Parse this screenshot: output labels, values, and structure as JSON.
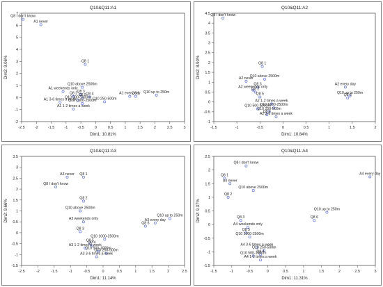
{
  "chart_data": [
    {
      "type": "scatter",
      "title": "Q10&Q11:A1",
      "xlabel": "Dim1: 10.81%",
      "ylabel": "Dim2: 9.06%",
      "xlim": [
        -2.5,
        3
      ],
      "ylim": [
        -2,
        7
      ],
      "xticks": [
        "-2.5",
        "-2",
        "-1.5",
        "-1",
        "-0.5",
        "0",
        "0.5",
        "1",
        "1.5",
        "2",
        "2.5",
        "3"
      ],
      "yticks": [
        "-2",
        "-1",
        "0",
        "1",
        "2",
        "3",
        "4",
        "5",
        "6",
        "7"
      ],
      "grid": false,
      "points": [
        {
          "label": "Q8 I don't know",
          "x": -2.45,
          "y": 6.5
        },
        {
          "label": "A1 never",
          "x": -1.85,
          "y": 6.05
        },
        {
          "label": "Q8 1",
          "x": -0.35,
          "y": 2.75
        },
        {
          "label": "Q10 above 2500m",
          "x": -0.45,
          "y": 0.85
        },
        {
          "label": "A1 weekends only",
          "x": -1.1,
          "y": 0.5
        },
        {
          "label": "Q8 3",
          "x": -0.5,
          "y": 0.25
        },
        {
          "label": "Q8 2",
          "x": -0.75,
          "y": 0.1
        },
        {
          "label": "Q8 4",
          "x": -0.2,
          "y": 0.05
        },
        {
          "label": "Q8 5",
          "x": -0.45,
          "y": -0.05
        },
        {
          "label": "Q10 500-1000m",
          "x": -0.6,
          "y": -0.25
        },
        {
          "label": "Q10 250-500m",
          "x": 0.3,
          "y": -0.35
        },
        {
          "label": "A1 3-6 times a week",
          "x": -1.2,
          "y": -0.4
        },
        {
          "label": "Q10 1000-2500m",
          "x": -0.45,
          "y": -0.5
        },
        {
          "label": "A1 1-2 times a week",
          "x": -0.75,
          "y": -0.95
        },
        {
          "label": "A1 every day",
          "x": 1.15,
          "y": 0.1
        },
        {
          "label": "Q8 6",
          "x": 1.35,
          "y": 0.1
        },
        {
          "label": "Q10 up to 250m",
          "x": 2.05,
          "y": 0.2
        }
      ]
    },
    {
      "type": "scatter",
      "title": "Q10&Q11:A2",
      "xlabel": "Dim1: 10.84%",
      "ylabel": "Dim2: 8.90%",
      "xlim": [
        -1.5,
        2
      ],
      "ylim": [
        -1,
        4.5
      ],
      "xticks": [
        "-1.5",
        "-1",
        "-0.5",
        "0",
        "0.5",
        "1",
        "1.5",
        "2"
      ],
      "yticks": [
        "-1",
        "-0.5",
        "0",
        "0.5",
        "1",
        "1.5",
        "2",
        "2.5",
        "3",
        "3.5",
        "4",
        "4.5"
      ],
      "grid": false,
      "points": [
        {
          "label": "Q8 I don't know",
          "x": -1.3,
          "y": 4.25
        },
        {
          "label": "Q8 1",
          "x": -0.45,
          "y": 1.8
        },
        {
          "label": "Q10 above 2500m",
          "x": -0.4,
          "y": 1.15
        },
        {
          "label": "A2 never",
          "x": -0.8,
          "y": 1.05
        },
        {
          "label": "Q8 3",
          "x": -0.55,
          "y": 0.75
        },
        {
          "label": "A2 weekends only",
          "x": -0.65,
          "y": 0.6
        },
        {
          "label": "A2 every day",
          "x": 1.35,
          "y": 0.75
        },
        {
          "label": "Q8 2",
          "x": -0.6,
          "y": 0.5
        },
        {
          "label": "Q10 up to 250m",
          "x": 1.45,
          "y": 0.3
        },
        {
          "label": "Q8 5",
          "x": -0.5,
          "y": 0.25
        },
        {
          "label": "Q8 6",
          "x": 1.4,
          "y": 0.2
        },
        {
          "label": "A2 1-2 times a week",
          "x": -0.25,
          "y": -0.1
        },
        {
          "label": "Q10 1000-2500m",
          "x": -0.2,
          "y": -0.3
        },
        {
          "label": "Q10 500-1000m",
          "x": -0.55,
          "y": -0.35
        },
        {
          "label": "Q8 4",
          "x": -0.35,
          "y": -0.65
        },
        {
          "label": "Q10 250-500m",
          "x": -0.3,
          "y": -0.5
        },
        {
          "label": "A2 3-6 times a week",
          "x": -0.15,
          "y": -0.75
        }
      ]
    },
    {
      "type": "scatter",
      "title": "Q10&Q11:A3",
      "xlabel": "Dim1: 11.14%",
      "ylabel": "Dim2: 9.66%",
      "xlim": [
        -2.5,
        2.5
      ],
      "ylim": [
        -1.5,
        3.5
      ],
      "xticks": [
        "-2.5",
        "-2",
        "-1.5",
        "-1",
        "-0.5",
        "0",
        "0.5",
        "1",
        "1.5",
        "2",
        "2.5"
      ],
      "yticks": [
        "-1.5",
        "-1",
        "-0.5",
        "0",
        "0.5",
        "1",
        "1.5",
        "2",
        "2.5",
        "3",
        "3.5"
      ],
      "grid": false,
      "points": [
        {
          "label": "A3 never",
          "x": -1.1,
          "y": 2.55
        },
        {
          "label": "Q8 1",
          "x": -0.6,
          "y": 2.55
        },
        {
          "label": "Q8 I don't know",
          "x": -1.45,
          "y": 2.1
        },
        {
          "label": "Q8 2",
          "x": -0.6,
          "y": 1.45
        },
        {
          "label": "Q10 above 2500m",
          "x": -0.7,
          "y": 1.0
        },
        {
          "label": "A3 weekends only",
          "x": -0.6,
          "y": 0.5
        },
        {
          "label": "Q10 up to 250m",
          "x": 2.05,
          "y": 0.65
        },
        {
          "label": "A3 every day",
          "x": 1.6,
          "y": 0.45
        },
        {
          "label": "Q8 3",
          "x": -0.7,
          "y": 0.05
        },
        {
          "label": "Q8 6",
          "x": 1.3,
          "y": 0.3
        },
        {
          "label": "Q10 1000-2500m",
          "x": 0.05,
          "y": -0.3
        },
        {
          "label": "Q8 5",
          "x": -0.4,
          "y": -0.5
        },
        {
          "label": "Q8 4",
          "x": -0.35,
          "y": -0.6
        },
        {
          "label": "A3 1-2 times a week",
          "x": -0.55,
          "y": -0.7
        },
        {
          "label": "Q10 500-1000m",
          "x": -0.15,
          "y": -0.85
        },
        {
          "label": "Q10 250-500m",
          "x": 0.1,
          "y": -0.95
        },
        {
          "label": "A3 3-6 times a week",
          "x": -0.2,
          "y": -1.1
        }
      ]
    },
    {
      "type": "scatter",
      "title": "Q10&Q11:A4",
      "xlabel": "Dim1: 11.31%",
      "ylabel": "Dim2: 9.37%",
      "xlim": [
        -1.5,
        3
      ],
      "ylim": [
        -1.5,
        2.5
      ],
      "xticks": [
        "-1.5",
        "-1",
        "-0.5",
        "0",
        "0.5",
        "1",
        "1.5",
        "2",
        "2.5",
        "3"
      ],
      "yticks": [
        "-1.5",
        "-1",
        "-0.5",
        "0",
        "0.5",
        "1",
        "1.5",
        "2",
        "2.5"
      ],
      "grid": false,
      "points": [
        {
          "label": "Q8 I don't know",
          "x": -0.6,
          "y": 2.15
        },
        {
          "label": "A4 every day",
          "x": 2.85,
          "y": 1.75
        },
        {
          "label": "Q8 1",
          "x": -1.2,
          "y": 1.7
        },
        {
          "label": "A4 never",
          "x": -1.05,
          "y": 1.5
        },
        {
          "label": "Q10 above 2500m",
          "x": -0.4,
          "y": 1.25
        },
        {
          "label": "Q8 2",
          "x": -1.1,
          "y": 1.0
        },
        {
          "label": "Q10 up to 250m",
          "x": 1.65,
          "y": 0.45
        },
        {
          "label": "Q8 6",
          "x": 1.3,
          "y": 0.15
        },
        {
          "label": "Q8 3",
          "x": -0.75,
          "y": 0.15
        },
        {
          "label": "A4 weekends only",
          "x": -0.55,
          "y": -0.1
        },
        {
          "label": "Q8 5",
          "x": -0.6,
          "y": -0.3
        },
        {
          "label": "Q10 1000-2500m",
          "x": -0.5,
          "y": -0.45
        },
        {
          "label": "A4 3-6 times a week",
          "x": -0.3,
          "y": -0.85
        },
        {
          "label": "Q10 250-500m",
          "x": -0.1,
          "y": -0.95
        },
        {
          "label": "Q8 4",
          "x": -0.2,
          "y": -1.1
        },
        {
          "label": "Q10 500-1000m",
          "x": -0.4,
          "y": -1.15
        },
        {
          "label": "A4 1-2 times a week",
          "x": -0.2,
          "y": -1.3
        }
      ]
    }
  ],
  "colors": {
    "point": "#5b6fd6",
    "axis": "#555555",
    "frame": "#7f7f7f",
    "text": "#222222"
  }
}
